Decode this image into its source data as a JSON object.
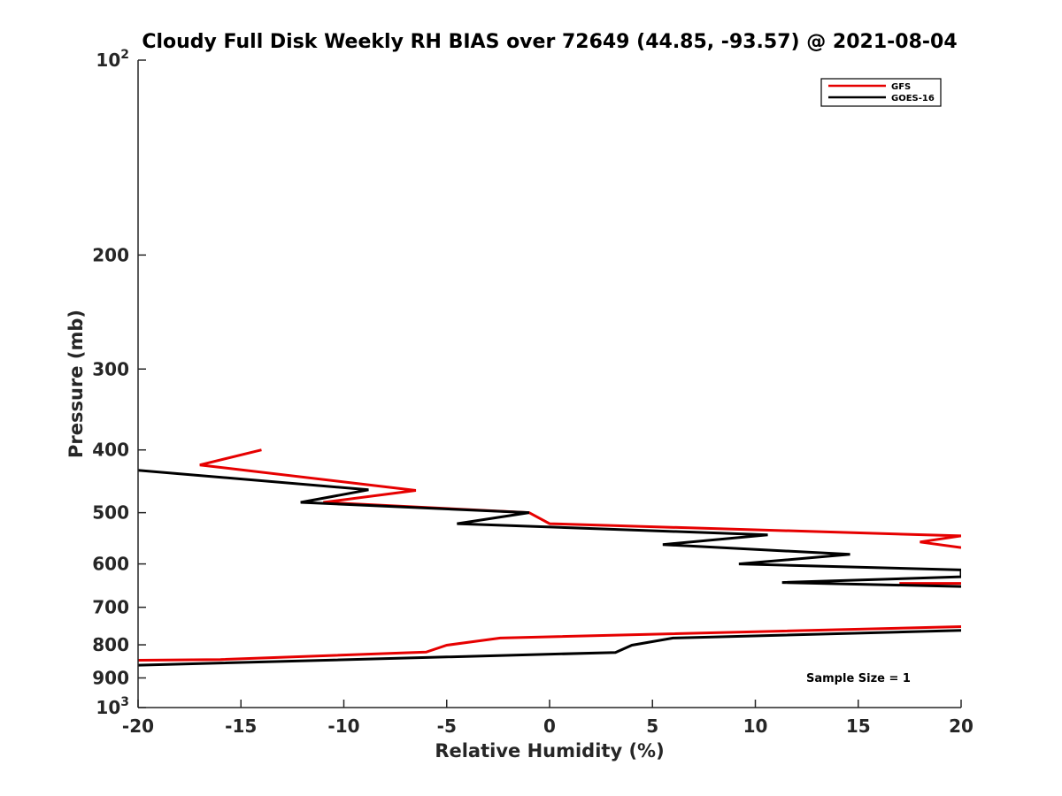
{
  "chart_data": {
    "type": "line",
    "title": "Cloudy Full Disk Weekly RH BIAS over 72649 (44.85, -93.57) @ 2021-08-04",
    "xlabel": "Relative Humidity (%)",
    "ylabel": "Pressure (mb)",
    "xlim": [
      -20,
      20
    ],
    "ylim": [
      100,
      1000
    ],
    "y_scale": "log",
    "y_reversed": true,
    "grid": false,
    "legend_position": "top-right",
    "x_ticks": [
      -20,
      -15,
      -10,
      -5,
      0,
      5,
      10,
      15,
      20
    ],
    "y_ticks": [
      {
        "value": 100,
        "label": "10",
        "sup": "2"
      },
      {
        "value": 200,
        "label": "200",
        "sup": ""
      },
      {
        "value": 300,
        "label": "300",
        "sup": ""
      },
      {
        "value": 400,
        "label": "400",
        "sup": ""
      },
      {
        "value": 500,
        "label": "500",
        "sup": ""
      },
      {
        "value": 600,
        "label": "600",
        "sup": ""
      },
      {
        "value": 700,
        "label": "700",
        "sup": ""
      },
      {
        "value": 800,
        "label": "800",
        "sup": ""
      },
      {
        "value": 900,
        "label": "900",
        "sup": ""
      },
      {
        "value": 1000,
        "label": "10",
        "sup": "3"
      }
    ],
    "series": [
      {
        "name": "GFS",
        "color": "#e60000",
        "segments": [
          {
            "x": [
              -14,
              -17,
              -6.5,
              -11,
              -1,
              0,
              20,
              18,
              20
            ],
            "y": [
              400,
              422,
              462,
              482,
              500,
              520,
              543,
              555,
              566
            ]
          },
          {
            "x": [
              17,
              20
            ],
            "y": [
              643,
              643
            ]
          },
          {
            "x": [
              -20,
              -16,
              -6,
              -5,
              -2.4,
              20
            ],
            "y": [
              845,
              843,
              821,
              801,
              781,
              750
            ]
          }
        ]
      },
      {
        "name": "GOES-16",
        "color": "#000000",
        "segments": [
          {
            "x": [
              -20,
              -8.8,
              -12.1,
              -1,
              -4.5,
              10.6,
              5.5,
              14.6,
              9.2,
              20,
              20,
              11.3,
              20
            ],
            "y": [
              430,
              461,
              482,
              500,
              520,
              541,
              560,
              580,
              600,
              613,
              628,
              641,
              650
            ]
          },
          {
            "x": [
              -20,
              3.2,
              4,
              6,
              20
            ],
            "y": [
              860,
              822,
              801,
              781,
              760
            ]
          }
        ]
      }
    ],
    "annotations": [
      "Sample Size = 1"
    ]
  }
}
